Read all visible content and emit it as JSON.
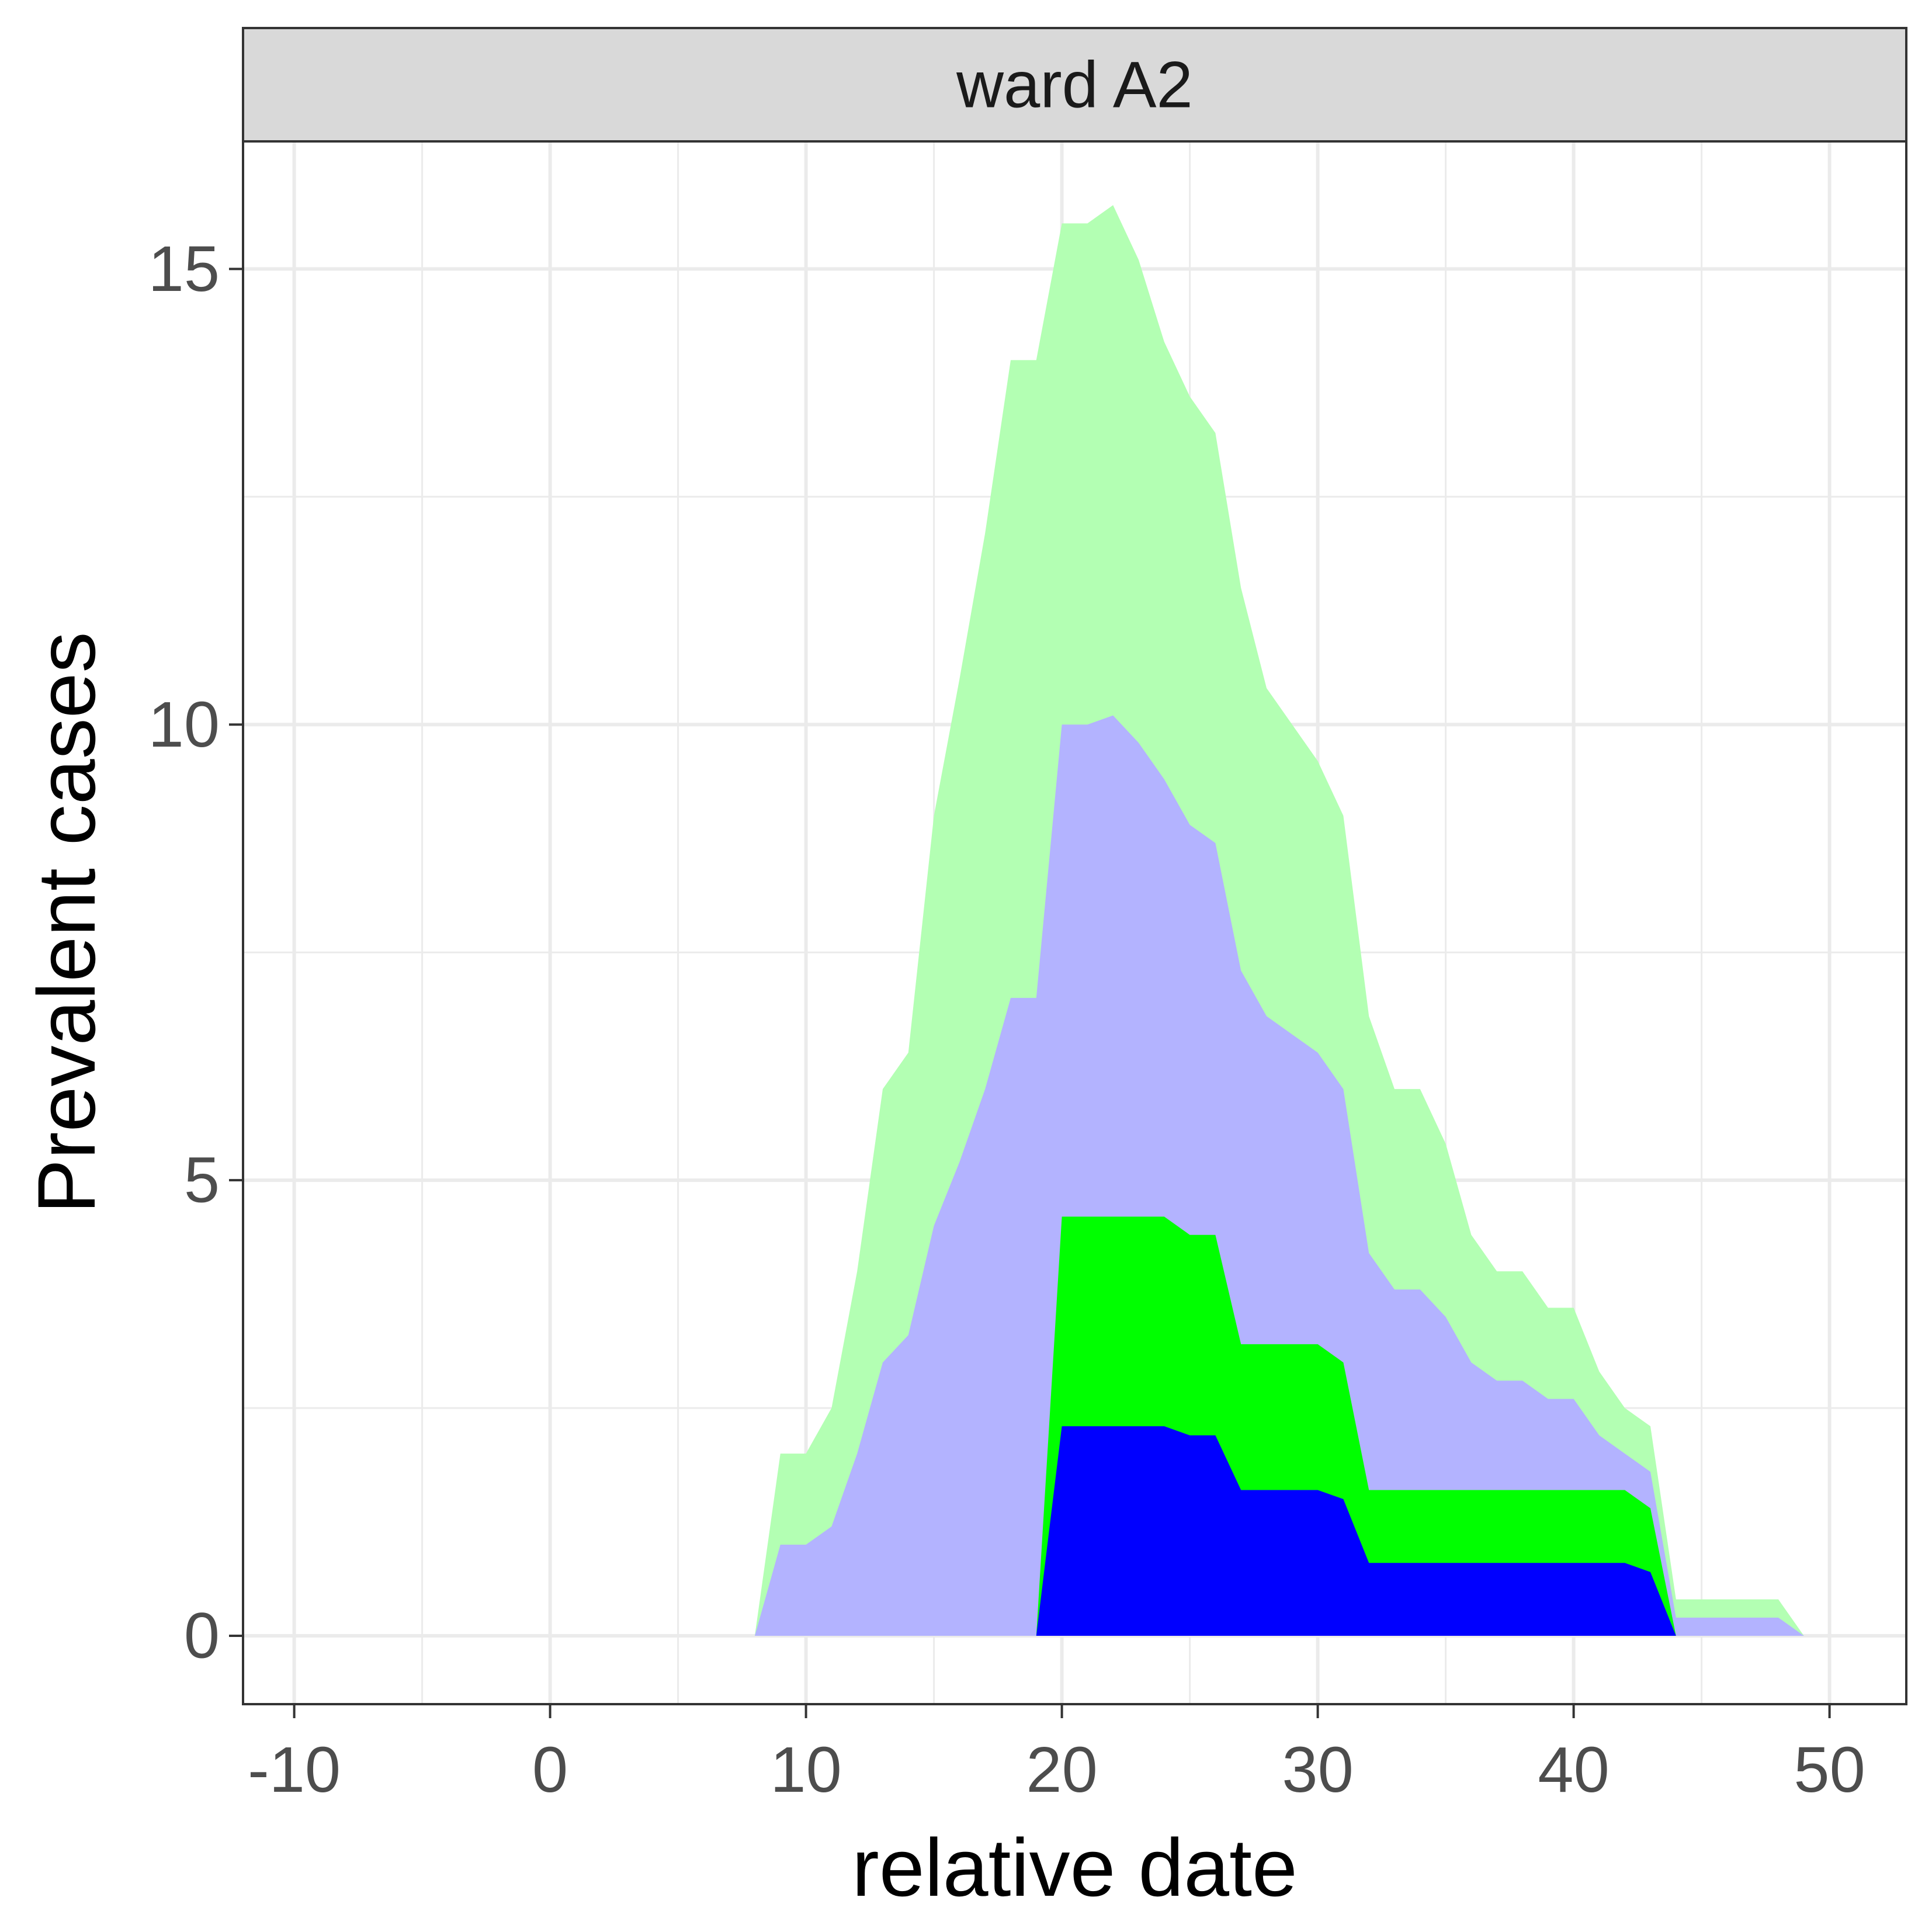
{
  "chart_data": {
    "type": "area",
    "facet_label": "ward A2",
    "xlabel": "relative date",
    "ylabel": "Prevalent cases",
    "xlim": [
      -12,
      53
    ],
    "ylim": [
      -0.75,
      16.4
    ],
    "x_ticks": [
      -10,
      0,
      10,
      20,
      30,
      40,
      50
    ],
    "y_ticks": [
      0,
      5,
      10,
      15
    ],
    "grid": true,
    "legend": "none",
    "layers": [
      {
        "color": "#b3ffb3",
        "upper": [
          [
            8,
            0
          ],
          [
            9,
            2
          ],
          [
            10,
            2
          ],
          [
            11,
            2.5
          ],
          [
            12,
            4
          ],
          [
            13,
            6
          ],
          [
            14,
            6.4
          ],
          [
            15,
            9
          ],
          [
            16,
            10.5
          ],
          [
            17,
            12.1
          ],
          [
            18,
            14
          ],
          [
            19,
            14
          ],
          [
            20,
            15.5
          ],
          [
            21,
            15.5
          ],
          [
            22,
            15.7
          ],
          [
            23,
            15.1
          ],
          [
            24,
            14.2
          ],
          [
            25,
            13.6
          ],
          [
            26,
            13.2
          ],
          [
            27,
            11.5
          ],
          [
            28,
            10.4
          ],
          [
            29,
            10
          ],
          [
            30,
            9.6
          ],
          [
            31,
            9
          ],
          [
            32,
            6.8
          ],
          [
            33,
            6
          ],
          [
            34,
            6
          ],
          [
            35,
            5.4
          ],
          [
            36,
            4.4
          ],
          [
            37,
            4
          ],
          [
            38,
            4
          ],
          [
            39,
            3.6
          ],
          [
            40,
            3.6
          ],
          [
            41,
            2.9
          ],
          [
            42,
            2.5
          ],
          [
            43,
            2.3
          ],
          [
            44,
            0.4
          ],
          [
            45,
            0.4
          ],
          [
            46,
            0.4
          ],
          [
            47,
            0.4
          ],
          [
            48,
            0.4
          ],
          [
            49,
            0
          ]
        ],
        "lower": [
          [
            8,
            0
          ],
          [
            49,
            0
          ]
        ]
      },
      {
        "color": "#b3b3ff",
        "upper": [
          [
            8,
            0
          ],
          [
            9,
            1
          ],
          [
            10,
            1
          ],
          [
            11,
            1.2
          ],
          [
            12,
            2
          ],
          [
            13,
            3
          ],
          [
            14,
            3.3
          ],
          [
            15,
            4.5
          ],
          [
            16,
            5.2
          ],
          [
            17,
            6
          ],
          [
            18,
            7
          ],
          [
            19,
            7
          ],
          [
            20,
            10
          ],
          [
            21,
            10
          ],
          [
            22,
            10.1
          ],
          [
            23,
            9.8
          ],
          [
            24,
            9.4
          ],
          [
            25,
            8.9
          ],
          [
            26,
            8.7
          ],
          [
            27,
            7.3
          ],
          [
            28,
            6.8
          ],
          [
            29,
            6.6
          ],
          [
            30,
            6.4
          ],
          [
            31,
            6
          ],
          [
            32,
            4.2
          ],
          [
            33,
            3.8
          ],
          [
            34,
            3.8
          ],
          [
            35,
            3.5
          ],
          [
            36,
            3
          ],
          [
            37,
            2.8
          ],
          [
            38,
            2.8
          ],
          [
            39,
            2.6
          ],
          [
            40,
            2.6
          ],
          [
            41,
            2.2
          ],
          [
            42,
            2
          ],
          [
            43,
            1.8
          ],
          [
            44,
            0.2
          ],
          [
            45,
            0.2
          ],
          [
            46,
            0.2
          ],
          [
            47,
            0.2
          ],
          [
            48,
            0.2
          ],
          [
            49,
            0
          ]
        ],
        "lower": [
          [
            8,
            0
          ],
          [
            49,
            0
          ]
        ]
      },
      {
        "color": "#00ff00",
        "upper": [
          [
            19,
            0
          ],
          [
            20,
            4.6
          ],
          [
            21,
            4.6
          ],
          [
            22,
            4.6
          ],
          [
            23,
            4.6
          ],
          [
            24,
            4.6
          ],
          [
            25,
            4.4
          ],
          [
            26,
            4.4
          ],
          [
            27,
            3.2
          ],
          [
            28,
            3.2
          ],
          [
            29,
            3.2
          ],
          [
            30,
            3.2
          ],
          [
            31,
            3
          ],
          [
            32,
            1.6
          ],
          [
            33,
            1.6
          ],
          [
            34,
            1.6
          ],
          [
            35,
            1.6
          ],
          [
            36,
            1.6
          ],
          [
            37,
            1.6
          ],
          [
            38,
            1.6
          ],
          [
            39,
            1.6
          ],
          [
            40,
            1.6
          ],
          [
            41,
            1.6
          ],
          [
            42,
            1.6
          ],
          [
            43,
            1.4
          ],
          [
            44,
            0
          ]
        ],
        "lower": [
          [
            19,
            0
          ],
          [
            44,
            0
          ]
        ]
      },
      {
        "color": "#0000ff",
        "upper": [
          [
            19,
            0
          ],
          [
            20,
            2.3
          ],
          [
            21,
            2.3
          ],
          [
            22,
            2.3
          ],
          [
            23,
            2.3
          ],
          [
            24,
            2.3
          ],
          [
            25,
            2.2
          ],
          [
            26,
            2.2
          ],
          [
            27,
            1.6
          ],
          [
            28,
            1.6
          ],
          [
            29,
            1.6
          ],
          [
            30,
            1.6
          ],
          [
            31,
            1.5
          ],
          [
            32,
            0.8
          ],
          [
            33,
            0.8
          ],
          [
            34,
            0.8
          ],
          [
            35,
            0.8
          ],
          [
            36,
            0.8
          ],
          [
            37,
            0.8
          ],
          [
            38,
            0.8
          ],
          [
            39,
            0.8
          ],
          [
            40,
            0.8
          ],
          [
            41,
            0.8
          ],
          [
            42,
            0.8
          ],
          [
            43,
            0.7
          ],
          [
            44,
            0
          ]
        ],
        "lower": [
          [
            19,
            0
          ],
          [
            44,
            0
          ]
        ]
      }
    ]
  }
}
